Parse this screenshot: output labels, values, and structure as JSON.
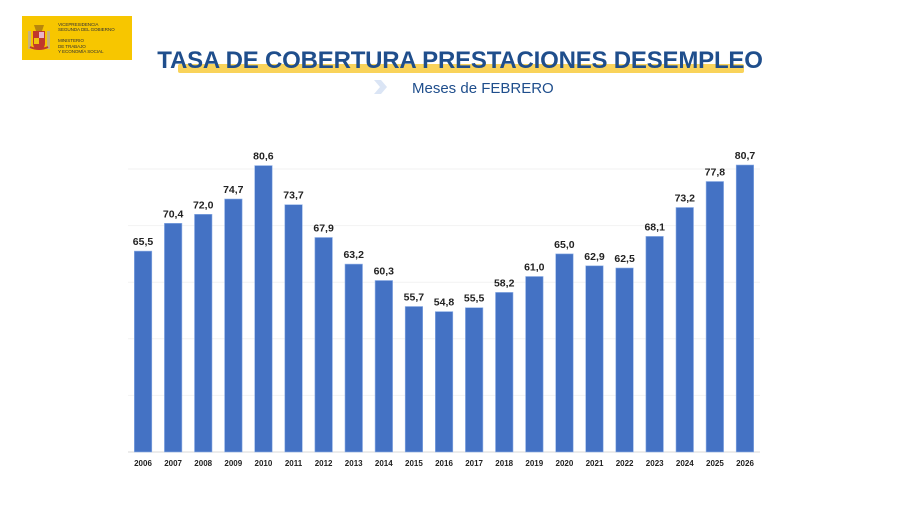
{
  "logo": {
    "lines": "Vicepresidencia\nSegunda del Gobierno\n\nMinisterio\nde Trabajo\ny Economía Social",
    "colors": {
      "background": "#f7c600"
    }
  },
  "header": {
    "title": "TASA DE COBERTURA PRESTACIONES DESEMPLEO",
    "subtitle": "Meses de FEBRERO",
    "colors": {
      "title": "#1f4e8c",
      "underline": "#f9d35a",
      "chevron": "#dbe5f5"
    }
  },
  "chart_data": {
    "type": "bar",
    "title": "TASA DE COBERTURA PRESTACIONES DESEMPLEO",
    "subtitle": "Meses de FEBRERO",
    "xlabel": "",
    "ylabel": "",
    "categories": [
      "2006",
      "2007",
      "2008",
      "2009",
      "2010",
      "2011",
      "2012",
      "2013",
      "2014",
      "2015",
      "2016",
      "2017",
      "2018",
      "2019",
      "2020",
      "2021",
      "2022",
      "2023",
      "2024",
      "2025",
      "2026"
    ],
    "values": [
      65.5,
      70.4,
      72.0,
      74.7,
      80.6,
      73.7,
      67.9,
      63.2,
      60.3,
      55.7,
      54.8,
      55.5,
      58.2,
      61.0,
      65.0,
      62.9,
      62.5,
      68.1,
      73.2,
      77.8,
      80.7
    ],
    "value_labels": [
      "65,5",
      "70,4",
      "72,0",
      "74,7",
      "80,6",
      "73,7",
      "67,9",
      "63,2",
      "60,3",
      "55,7",
      "54,8",
      "55,5",
      "58,2",
      "61,0",
      "65,0",
      "62,9",
      "62,5",
      "68,1",
      "73,2",
      "77,8",
      "80,7"
    ],
    "ylim": [
      30,
      85
    ],
    "gridlines": [
      30,
      40,
      50,
      60,
      70,
      80
    ],
    "grid": true,
    "legend": "none",
    "bar_color": "#4472c4"
  }
}
